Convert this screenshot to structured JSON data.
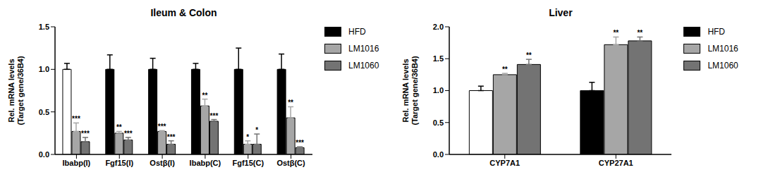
{
  "chart_data": [
    {
      "type": "bar",
      "title": "Ileum & Colon",
      "y_label": [
        "Rel. mRNA levels",
        "(Target gene/36B4)"
      ],
      "legend": "right",
      "categories": [
        "Ibabp(I)",
        "Fgf15(I)",
        "Ostβ(I)",
        "Ibabp(C)",
        "Fgf15(C)",
        "Ostβ(C)"
      ],
      "ylim": [
        0,
        1.5
      ],
      "yticks": [
        {
          "value": 0,
          "label": "0.0"
        },
        {
          "value": 0.5,
          "label": "0.5"
        },
        {
          "value": 1,
          "label": "1.0"
        },
        {
          "value": 1.5,
          "label": "1.5"
        }
      ],
      "series": [
        {
          "name": "HFD",
          "color": "#000000",
          "colors": [
            "#ffffff",
            "#000000",
            "#000000",
            "#000000",
            "#000000",
            "#000000"
          ],
          "values": [
            1.0,
            1.0,
            1.0,
            1.0,
            1.0,
            1.0
          ],
          "errors": [
            0.07,
            0.17,
            0.13,
            0.07,
            0.25,
            0.18
          ],
          "annotations": [
            "",
            "",
            "",
            "",
            "",
            ""
          ]
        },
        {
          "name": "LM1016",
          "color": "#a6a6a6",
          "values": [
            0.27,
            0.25,
            0.27,
            0.57,
            0.12,
            0.43
          ],
          "errors": [
            0.1,
            0.02,
            0.01,
            0.08,
            0.04,
            0.13
          ],
          "annotations": [
            "***",
            "**",
            "***",
            "**",
            "*",
            "**"
          ]
        },
        {
          "name": "LM1060",
          "color": "#737373",
          "values": [
            0.15,
            0.17,
            0.12,
            0.39,
            0.12,
            0.08
          ],
          "errors": [
            0.05,
            0.03,
            0.04,
            0.02,
            0.12,
            0.01
          ],
          "annotations": [
            "***",
            "***",
            "***",
            "***",
            "*",
            "***"
          ]
        }
      ]
    },
    {
      "type": "bar",
      "title": "Liver",
      "y_label": [
        "Rel. mRNA levels",
        "(Target gene/36B4)"
      ],
      "legend": "right",
      "categories": [
        "CYP7A1",
        "CYP27A1"
      ],
      "ylim": [
        0,
        2.0
      ],
      "yticks": [
        {
          "value": 0,
          "label": "0.0"
        },
        {
          "value": 0.5,
          "label": "0.5"
        },
        {
          "value": 1,
          "label": "1.0"
        },
        {
          "value": 1.5,
          "label": "1.5"
        },
        {
          "value": 2,
          "label": "2.0"
        }
      ],
      "series": [
        {
          "name": "HFD",
          "color": "#000000",
          "colors": [
            "#ffffff",
            "#000000"
          ],
          "values": [
            1.0,
            1.0
          ],
          "errors": [
            0.07,
            0.13
          ],
          "annotations": [
            "",
            ""
          ]
        },
        {
          "name": "LM1016",
          "color": "#a6a6a6",
          "values": [
            1.25,
            1.72
          ],
          "errors": [
            0.02,
            0.12
          ],
          "annotations": [
            "**",
            "**"
          ]
        },
        {
          "name": "LM1060",
          "color": "#737373",
          "values": [
            1.41,
            1.78
          ],
          "errors": [
            0.08,
            0.06
          ],
          "annotations": [
            "**",
            "**"
          ]
        }
      ]
    }
  ]
}
